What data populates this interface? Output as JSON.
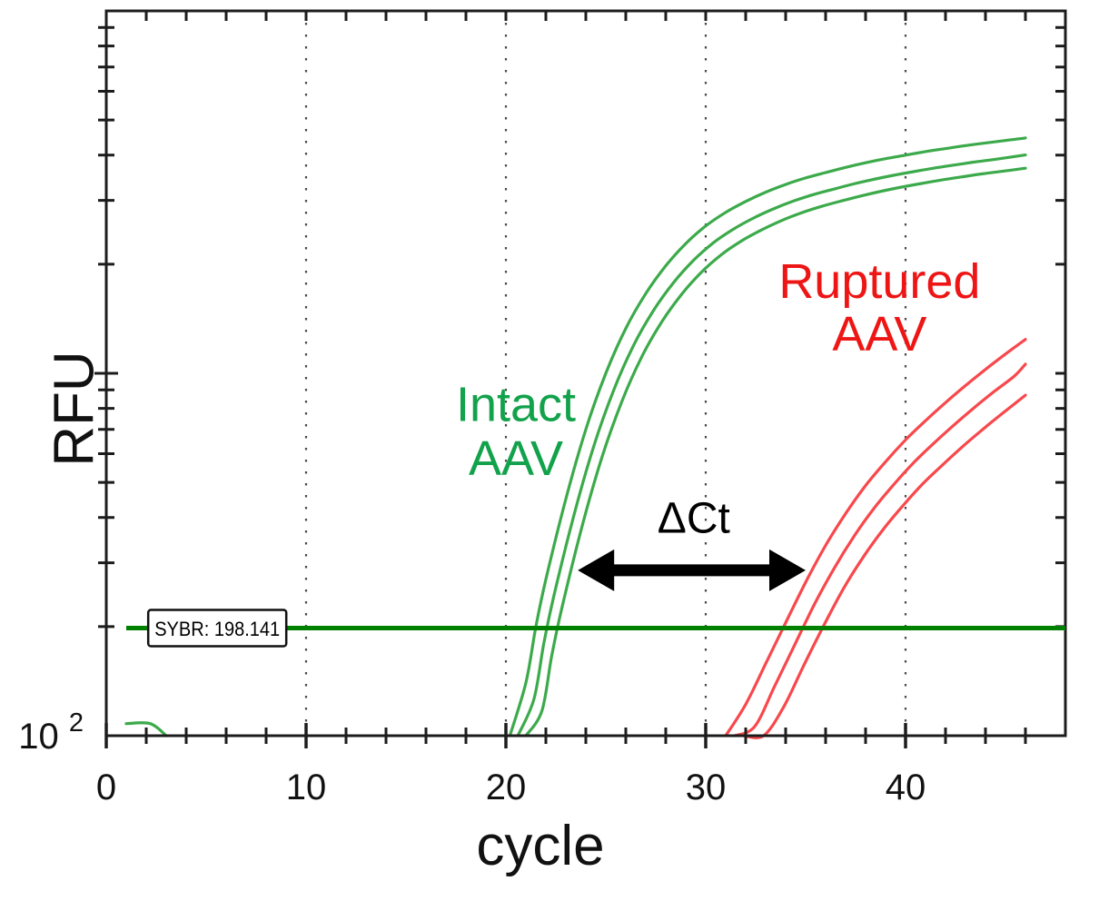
{
  "chart_data": {
    "type": "line",
    "xlabel": "cycle",
    "ylabel": "RFU",
    "x_axis": {
      "min": 0,
      "max": 48,
      "major_ticks": [
        0,
        10,
        20,
        30,
        40
      ],
      "minor_tick_step": 2,
      "minor_tick_last": 46
    },
    "y_axis": {
      "scale": "log",
      "min": 100,
      "max": 10000,
      "bottom_tick_label": {
        "base": "10",
        "exponent": "2"
      },
      "minor_ticks": [
        200,
        300,
        400,
        500,
        600,
        700,
        800,
        900,
        2000,
        3000,
        4000,
        5000,
        6000,
        7000,
        8000,
        9000
      ],
      "major_ticks": [
        1000
      ]
    },
    "gridlines_at_cycles": [
      10,
      20,
      30,
      40
    ],
    "grid_color": "#4a4a4a",
    "axis_color": "#1c1c1c",
    "label_color": "#111111",
    "threshold": {
      "label": "SYBR: 198.141",
      "rfu": 198.141,
      "start_cycle": 1.0,
      "label_anchor_cycle": 2.1,
      "color": "#008000"
    },
    "delta_ct_arrow": {
      "from_cycle": 23.6,
      "to_cycle": 35.0,
      "rfu": 286,
      "color": "#000000"
    },
    "annotations": [
      {
        "id": "intact",
        "text_lines": [
          "Intact",
          "AAV"
        ],
        "color": "#12a24b",
        "x_cycle": 20.5,
        "y_rfu_lines": [
          820,
          581
        ],
        "font_px": 54
      },
      {
        "id": "ruptured",
        "text_lines": [
          "Ruptured",
          "AAV"
        ],
        "color": "#ee1515",
        "x_cycle": 38.7,
        "y_rfu_lines": [
          1790,
          1280
        ],
        "font_px": 54
      },
      {
        "id": "delta-ct",
        "text_lines": [
          "ΔCt"
        ],
        "color": "#000000",
        "x_cycle": 29.4,
        "y_rfu_lines": [
          397
        ],
        "font_px": 48
      }
    ],
    "series": [
      {
        "name": "Intact AAV replicate 1",
        "color": "#3caa4b",
        "points": [
          [
            20.2,
            100
          ],
          [
            21,
            140
          ],
          [
            21.5,
            200
          ],
          [
            22,
            270
          ],
          [
            23,
            450
          ],
          [
            24,
            700
          ],
          [
            25,
            1000
          ],
          [
            26,
            1330
          ],
          [
            27,
            1660
          ],
          [
            28,
            1980
          ],
          [
            29,
            2280
          ],
          [
            30,
            2550
          ],
          [
            31,
            2780
          ],
          [
            32,
            2980
          ],
          [
            33,
            3160
          ],
          [
            34,
            3320
          ],
          [
            35,
            3460
          ],
          [
            36,
            3580
          ],
          [
            37,
            3700
          ],
          [
            38,
            3810
          ],
          [
            39,
            3910
          ],
          [
            40,
            4000
          ],
          [
            41,
            4090
          ],
          [
            42,
            4170
          ],
          [
            43,
            4250
          ],
          [
            44,
            4320
          ],
          [
            45,
            4390
          ],
          [
            46,
            4460
          ]
        ]
      },
      {
        "name": "Intact AAV replicate 2",
        "color": "#3caa4b",
        "points": [
          [
            20.6,
            100
          ],
          [
            21.4,
            126
          ],
          [
            21.9,
            180
          ],
          [
            22.4,
            243
          ],
          [
            23.4,
            405
          ],
          [
            24.4,
            630
          ],
          [
            25.4,
            900
          ],
          [
            26.4,
            1197
          ],
          [
            27.4,
            1494
          ],
          [
            28.4,
            1782
          ],
          [
            29.4,
            2052
          ],
          [
            30.4,
            2295
          ],
          [
            31.4,
            2502
          ],
          [
            32.4,
            2682
          ],
          [
            33.4,
            2844
          ],
          [
            34.4,
            2988
          ],
          [
            35.4,
            3114
          ],
          [
            36.4,
            3222
          ],
          [
            37.4,
            3330
          ],
          [
            38.4,
            3429
          ],
          [
            39.4,
            3519
          ],
          [
            40.4,
            3600
          ],
          [
            41.4,
            3681
          ],
          [
            42.4,
            3753
          ],
          [
            43.4,
            3825
          ],
          [
            44.4,
            3888
          ],
          [
            46,
            4005
          ]
        ]
      },
      {
        "name": "Intact AAV replicate 3",
        "color": "#3caa4b",
        "points": [
          [
            21.0,
            100
          ],
          [
            21.8,
            117
          ],
          [
            22.3,
            167
          ],
          [
            22.8,
            225
          ],
          [
            23.8,
            376
          ],
          [
            24.8,
            585
          ],
          [
            25.8,
            835
          ],
          [
            26.8,
            1111
          ],
          [
            27.8,
            1386
          ],
          [
            28.8,
            1653
          ],
          [
            29.8,
            1904
          ],
          [
            30.8,
            2129
          ],
          [
            31.8,
            2321
          ],
          [
            32.8,
            2488
          ],
          [
            33.8,
            2639
          ],
          [
            34.8,
            2772
          ],
          [
            35.8,
            2889
          ],
          [
            36.8,
            2990
          ],
          [
            37.8,
            3089
          ],
          [
            38.8,
            3181
          ],
          [
            39.8,
            3265
          ],
          [
            40.8,
            3340
          ],
          [
            41.8,
            3415
          ],
          [
            42.8,
            3482
          ],
          [
            43.8,
            3549
          ],
          [
            44.8,
            3607
          ],
          [
            46,
            3680
          ]
        ]
      },
      {
        "name": "Ruptured AAV replicate 1",
        "color": "#f8484c",
        "points": [
          [
            31.0,
            100
          ],
          [
            32,
            122
          ],
          [
            33,
            158
          ],
          [
            34,
            205
          ],
          [
            35,
            265
          ],
          [
            36,
            335
          ],
          [
            37,
            410
          ],
          [
            38,
            490
          ],
          [
            39,
            570
          ],
          [
            40,
            655
          ],
          [
            41,
            740
          ],
          [
            42,
            830
          ],
          [
            43,
            925
          ],
          [
            44,
            1025
          ],
          [
            45,
            1130
          ],
          [
            46,
            1240
          ]
        ]
      },
      {
        "name": "Ruptured AAV replicate 2",
        "color": "#f8484c",
        "points": [
          [
            31.45,
            100
          ],
          [
            32.45,
            106
          ],
          [
            33.45,
            137
          ],
          [
            34.45,
            178
          ],
          [
            35.45,
            231
          ],
          [
            36.45,
            291
          ],
          [
            37.45,
            357
          ],
          [
            38.45,
            426
          ],
          [
            39.45,
            496
          ],
          [
            40.45,
            570
          ],
          [
            41.45,
            644
          ],
          [
            42.45,
            722
          ],
          [
            43.45,
            805
          ],
          [
            44.45,
            892
          ],
          [
            45.45,
            983
          ],
          [
            46,
            1060
          ]
        ]
      },
      {
        "name": "Ruptured AAV replicate 3",
        "color": "#f8484c",
        "points": [
          [
            31.9,
            100
          ],
          [
            32.9,
            100
          ],
          [
            33.9,
            120
          ],
          [
            34.9,
            156
          ],
          [
            35.9,
            201
          ],
          [
            36.9,
            255
          ],
          [
            37.9,
            312
          ],
          [
            38.9,
            372
          ],
          [
            39.9,
            433
          ],
          [
            40.9,
            498
          ],
          [
            41.9,
            562
          ],
          [
            42.9,
            631
          ],
          [
            43.9,
            703
          ],
          [
            44.9,
            779
          ],
          [
            46,
            870
          ]
        ]
      },
      {
        "name": "baseline trace",
        "color": "#3caa4b",
        "points": [
          [
            1.0,
            108
          ],
          [
            2.2,
            108
          ],
          [
            3.0,
            100
          ]
        ]
      }
    ]
  }
}
